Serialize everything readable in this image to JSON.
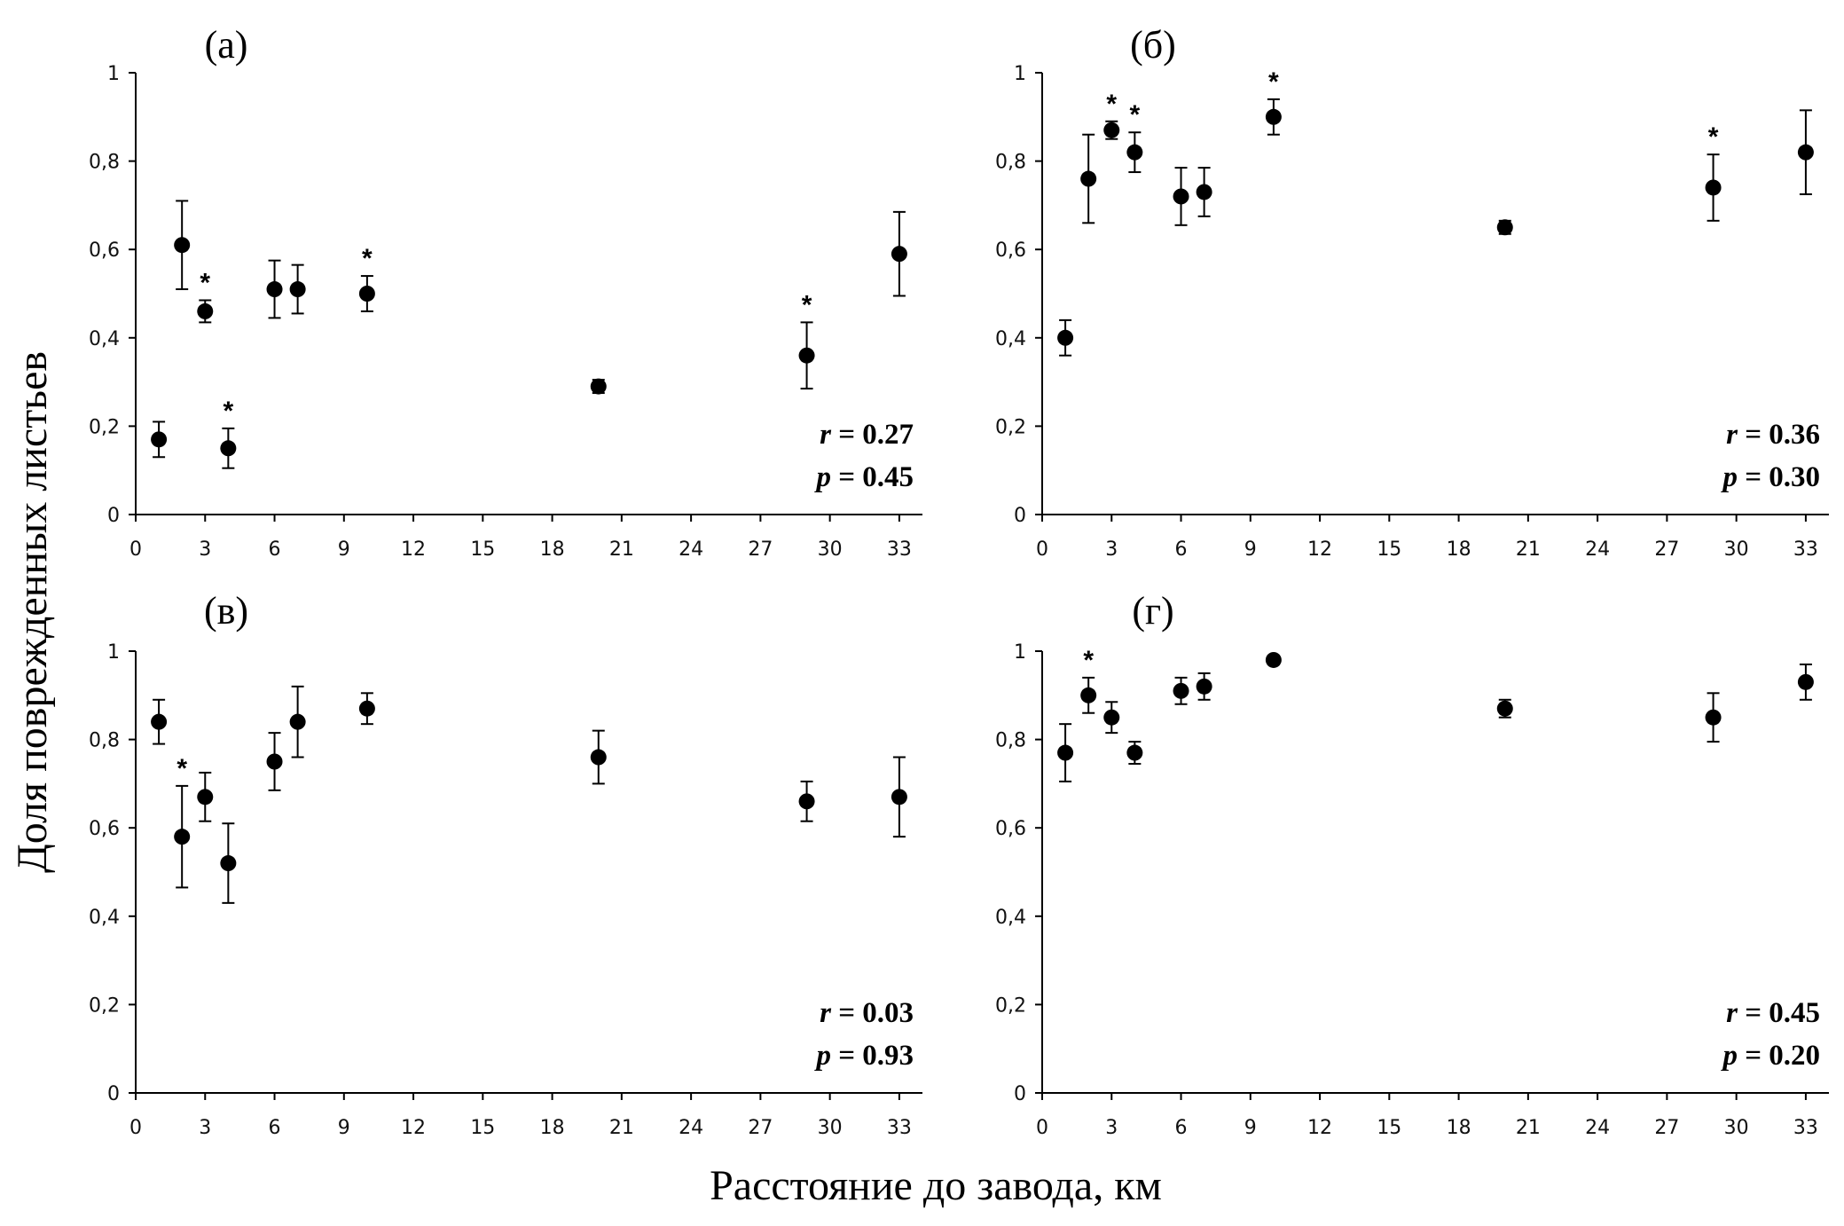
{
  "figure": {
    "ylabel": "Доля поврежденных листьев",
    "xlabel": "Расстояние до завода, км"
  },
  "chart_data": [
    {
      "type": "scatter",
      "panel": "(а)",
      "x_ticks": [
        "0",
        "3",
        "6",
        "9",
        "12",
        "15",
        "18",
        "21",
        "24",
        "27",
        "30",
        "33"
      ],
      "y_ticks": [
        "0",
        "0,2",
        "0,4",
        "0,6",
        "0,8",
        "1"
      ],
      "xlim": [
        0,
        34
      ],
      "ylim": [
        0,
        1
      ],
      "grid": false,
      "error_bars": true,
      "points": [
        {
          "x": 1,
          "y": 0.17,
          "err": 0.04,
          "star": false
        },
        {
          "x": 2,
          "y": 0.61,
          "err": 0.1,
          "star": false
        },
        {
          "x": 3,
          "y": 0.46,
          "err": 0.025,
          "star": true
        },
        {
          "x": 4,
          "y": 0.15,
          "err": 0.045,
          "star": true
        },
        {
          "x": 6,
          "y": 0.51,
          "err": 0.065,
          "star": false
        },
        {
          "x": 7,
          "y": 0.51,
          "err": 0.055,
          "star": false
        },
        {
          "x": 10,
          "y": 0.5,
          "err": 0.04,
          "star": true
        },
        {
          "x": 20,
          "y": 0.29,
          "err": 0.015,
          "star": false
        },
        {
          "x": 29,
          "y": 0.36,
          "err": 0.075,
          "star": true
        },
        {
          "x": 33,
          "y": 0.59,
          "err": 0.095,
          "star": false
        }
      ],
      "r_label": "r",
      "r_value": " = 0.27",
      "p_label": "p",
      "p_value": " = 0.45"
    },
    {
      "type": "scatter",
      "panel": "(б)",
      "x_ticks": [
        "0",
        "3",
        "6",
        "9",
        "12",
        "15",
        "18",
        "21",
        "24",
        "27",
        "30",
        "33"
      ],
      "y_ticks": [
        "0",
        "0,2",
        "0,4",
        "0,6",
        "0,8",
        "1"
      ],
      "xlim": [
        0,
        34
      ],
      "ylim": [
        0,
        1
      ],
      "grid": false,
      "error_bars": true,
      "points": [
        {
          "x": 1,
          "y": 0.4,
          "err": 0.04,
          "star": false
        },
        {
          "x": 2,
          "y": 0.76,
          "err": 0.1,
          "star": false
        },
        {
          "x": 3,
          "y": 0.87,
          "err": 0.02,
          "star": true
        },
        {
          "x": 4,
          "y": 0.82,
          "err": 0.045,
          "star": true
        },
        {
          "x": 6,
          "y": 0.72,
          "err": 0.065,
          "star": false
        },
        {
          "x": 7,
          "y": 0.73,
          "err": 0.055,
          "star": false
        },
        {
          "x": 10,
          "y": 0.9,
          "err": 0.04,
          "star": true
        },
        {
          "x": 20,
          "y": 0.65,
          "err": 0.015,
          "star": false
        },
        {
          "x": 29,
          "y": 0.74,
          "err": 0.075,
          "star": true
        },
        {
          "x": 33,
          "y": 0.82,
          "err": 0.095,
          "star": false
        }
      ],
      "r_label": "r",
      "r_value": " = 0.36",
      "p_label": "p",
      "p_value": " = 0.30"
    },
    {
      "type": "scatter",
      "panel": "(в)",
      "x_ticks": [
        "0",
        "3",
        "6",
        "9",
        "12",
        "15",
        "18",
        "21",
        "24",
        "27",
        "30",
        "33"
      ],
      "y_ticks": [
        "0",
        "0,2",
        "0,4",
        "0,6",
        "0,8",
        "1"
      ],
      "xlim": [
        0,
        34
      ],
      "ylim": [
        0,
        1
      ],
      "grid": false,
      "error_bars": true,
      "points": [
        {
          "x": 1,
          "y": 0.84,
          "err": 0.05,
          "star": false
        },
        {
          "x": 2,
          "y": 0.58,
          "err": 0.115,
          "star": true
        },
        {
          "x": 3,
          "y": 0.67,
          "err": 0.055,
          "star": false
        },
        {
          "x": 4,
          "y": 0.52,
          "err": 0.09,
          "star": false
        },
        {
          "x": 6,
          "y": 0.75,
          "err": 0.065,
          "star": false
        },
        {
          "x": 7,
          "y": 0.84,
          "err": 0.08,
          "star": false
        },
        {
          "x": 10,
          "y": 0.87,
          "err": 0.035,
          "star": false
        },
        {
          "x": 20,
          "y": 0.76,
          "err": 0.06,
          "star": false
        },
        {
          "x": 29,
          "y": 0.66,
          "err": 0.045,
          "star": false
        },
        {
          "x": 33,
          "y": 0.67,
          "err": 0.09,
          "star": false
        }
      ],
      "r_label": "r",
      "r_value": " = 0.03",
      "p_label": "p",
      "p_value": " = 0.93"
    },
    {
      "type": "scatter",
      "panel": "(г)",
      "x_ticks": [
        "0",
        "3",
        "6",
        "9",
        "12",
        "15",
        "18",
        "21",
        "24",
        "27",
        "30",
        "33"
      ],
      "y_ticks": [
        "0",
        "0,2",
        "0,4",
        "0,6",
        "0,8",
        "1"
      ],
      "xlim": [
        0,
        34
      ],
      "ylim": [
        0,
        1
      ],
      "grid": false,
      "error_bars": true,
      "points": [
        {
          "x": 1,
          "y": 0.77,
          "err": 0.065,
          "star": false
        },
        {
          "x": 2,
          "y": 0.9,
          "err": 0.04,
          "star": true
        },
        {
          "x": 3,
          "y": 0.85,
          "err": 0.035,
          "star": false
        },
        {
          "x": 4,
          "y": 0.77,
          "err": 0.025,
          "star": false
        },
        {
          "x": 6,
          "y": 0.91,
          "err": 0.03,
          "star": false
        },
        {
          "x": 7,
          "y": 0.92,
          "err": 0.03,
          "star": false
        },
        {
          "x": 10,
          "y": 0.98,
          "err": 0.01,
          "star": false
        },
        {
          "x": 20,
          "y": 0.87,
          "err": 0.02,
          "star": false
        },
        {
          "x": 29,
          "y": 0.85,
          "err": 0.055,
          "star": false
        },
        {
          "x": 33,
          "y": 0.93,
          "err": 0.04,
          "star": false
        }
      ],
      "r_label": "r",
      "r_value": " = 0.45",
      "p_label": "p",
      "p_value": " = 0.20"
    }
  ]
}
